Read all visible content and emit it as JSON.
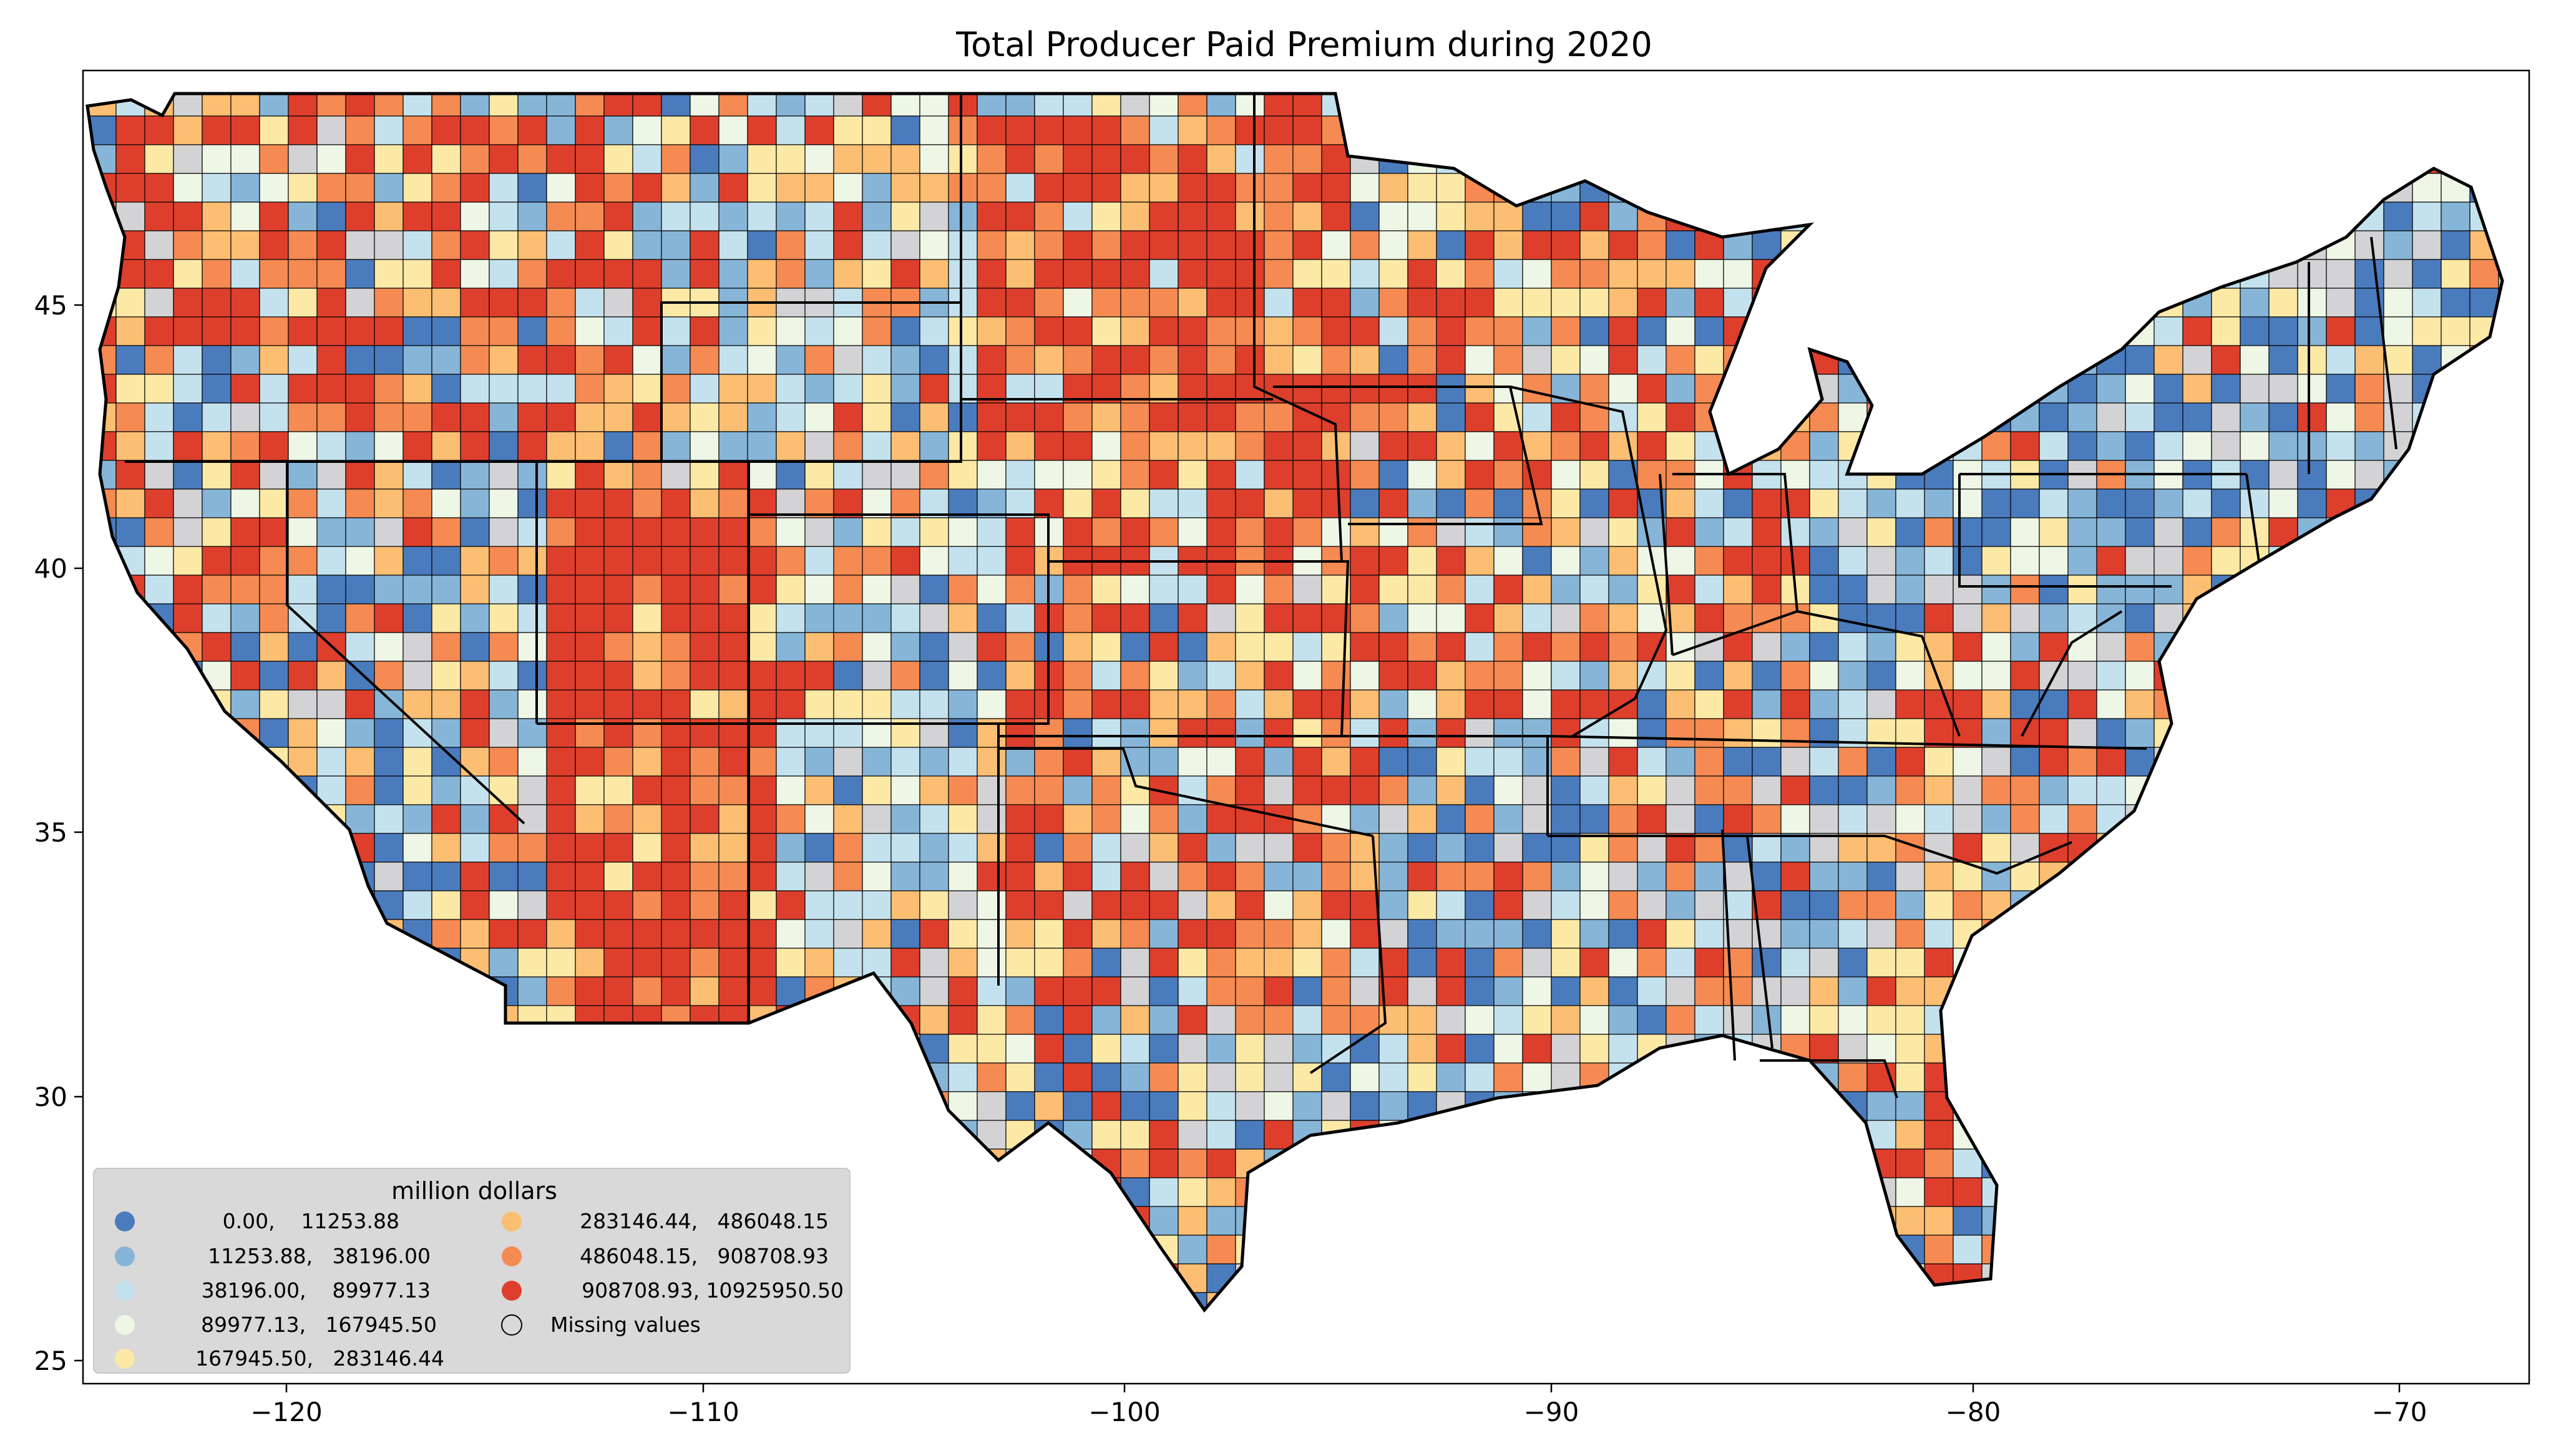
{
  "title": "Total Producer Paid Premium during 2020",
  "x_ticks": [
    "−120",
    "−110",
    "−100",
    "−90",
    "−80",
    "−70"
  ],
  "y_ticks": [
    "45",
    "40",
    "35",
    "30",
    "25"
  ],
  "legend": {
    "title": "million dollars",
    "bins": [
      {
        "label": "0.00,    11253.88",
        "color": "#4a7bbd"
      },
      {
        "label": "11253.88,   38196.00",
        "color": "#86b5d8"
      },
      {
        "label": "38196.00,    89977.13",
        "color": "#c4e2ee"
      },
      {
        "label": "89977.13,   167945.50",
        "color": "#eef6e6"
      },
      {
        "label": "167945.50,   283146.44",
        "color": "#fde9a6"
      },
      {
        "label": "283146.44,   486048.15",
        "color": "#fcbe72"
      },
      {
        "label": "486048.15,   908708.93",
        "color": "#f58a52"
      },
      {
        "label": "908708.93, 10925950.50",
        "color": "#dd3f2c"
      }
    ],
    "missing_label": "Missing values",
    "missing_color": "#d3d3d5"
  }
}
